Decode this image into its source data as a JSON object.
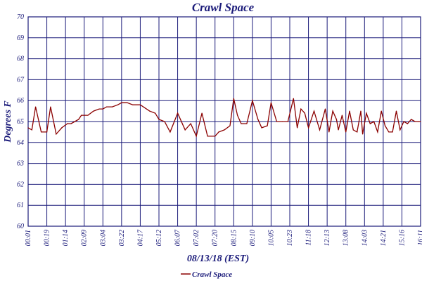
{
  "colors": {
    "grid": "#1b1b7a",
    "text": "#1b1b7a",
    "series": "#8b0000",
    "background": "#ffffff"
  },
  "chart_data": {
    "type": "line",
    "title": "Crawl Space",
    "xlabel": "08/13/18 (EST)",
    "ylabel": "Degrees F",
    "ylim": [
      60,
      70
    ],
    "yticks": [
      60,
      61,
      62,
      63,
      64,
      65,
      66,
      67,
      68,
      69,
      70
    ],
    "xticks": [
      "00:01",
      "00:19",
      "01:14",
      "02:09",
      "03:04",
      "03:22",
      "04:17",
      "05:12",
      "06:07",
      "07:02",
      "07:20",
      "08:15",
      "09:10",
      "10:05",
      "10:23",
      "11:18",
      "12:13",
      "13:08",
      "14:03",
      "14:21",
      "15:16",
      "16:11"
    ],
    "grid": true,
    "legend_position": "bottom",
    "series": [
      {
        "name": "Crawl Space",
        "x_index": [
          0,
          0.2,
          0.4,
          0.7,
          1.0,
          1.2,
          1.5,
          1.8,
          2.1,
          2.3,
          2.5,
          2.7,
          2.85,
          3.0,
          3.2,
          3.5,
          3.8,
          4.0,
          4.2,
          4.5,
          4.8,
          5.0,
          5.3,
          5.6,
          6.0,
          6.5,
          6.8,
          7.0,
          7.3,
          7.6,
          8.0,
          8.4,
          8.7,
          9.0,
          9.3,
          9.6,
          10.0,
          10.2,
          10.5,
          10.8,
          11.0,
          11.2,
          11.4,
          11.7,
          12.0,
          12.3,
          12.5,
          12.8,
          13.0,
          13.3,
          13.6,
          13.9,
          14.2,
          14.4,
          14.6,
          14.8,
          15.0,
          15.3,
          15.6,
          15.9,
          16.1,
          16.3,
          16.5,
          16.6,
          16.8,
          17.0,
          17.2,
          17.4,
          17.6,
          17.8,
          17.9,
          18.1,
          18.3,
          18.5,
          18.7,
          18.9,
          19.1,
          19.3,
          19.5,
          19.7,
          19.9,
          20.1,
          20.3,
          20.5,
          20.7,
          20.9,
          21.0
        ],
        "values": [
          64.7,
          64.6,
          65.7,
          64.5,
          64.5,
          65.7,
          64.4,
          64.7,
          64.9,
          64.9,
          65.0,
          65.1,
          65.3,
          65.3,
          65.3,
          65.5,
          65.6,
          65.6,
          65.7,
          65.7,
          65.8,
          65.9,
          65.9,
          65.8,
          65.8,
          65.5,
          65.4,
          65.1,
          65.0,
          64.5,
          65.4,
          64.6,
          64.9,
          64.3,
          65.4,
          64.3,
          64.3,
          64.5,
          64.6,
          64.8,
          66.1,
          65.3,
          64.9,
          64.9,
          66.0,
          65.1,
          64.7,
          64.8,
          65.9,
          65.0,
          65.0,
          65.0,
          66.1,
          64.7,
          65.6,
          65.4,
          64.7,
          65.5,
          64.6,
          65.6,
          64.5,
          65.5,
          65.1,
          64.6,
          65.3,
          64.5,
          65.5,
          64.6,
          64.5,
          65.5,
          64.4,
          65.4,
          64.9,
          65.0,
          64.5,
          65.5,
          64.8,
          64.5,
          64.5,
          65.5,
          64.6,
          65.0,
          64.9,
          65.1,
          65.0,
          65.0,
          65.0
        ]
      }
    ]
  }
}
